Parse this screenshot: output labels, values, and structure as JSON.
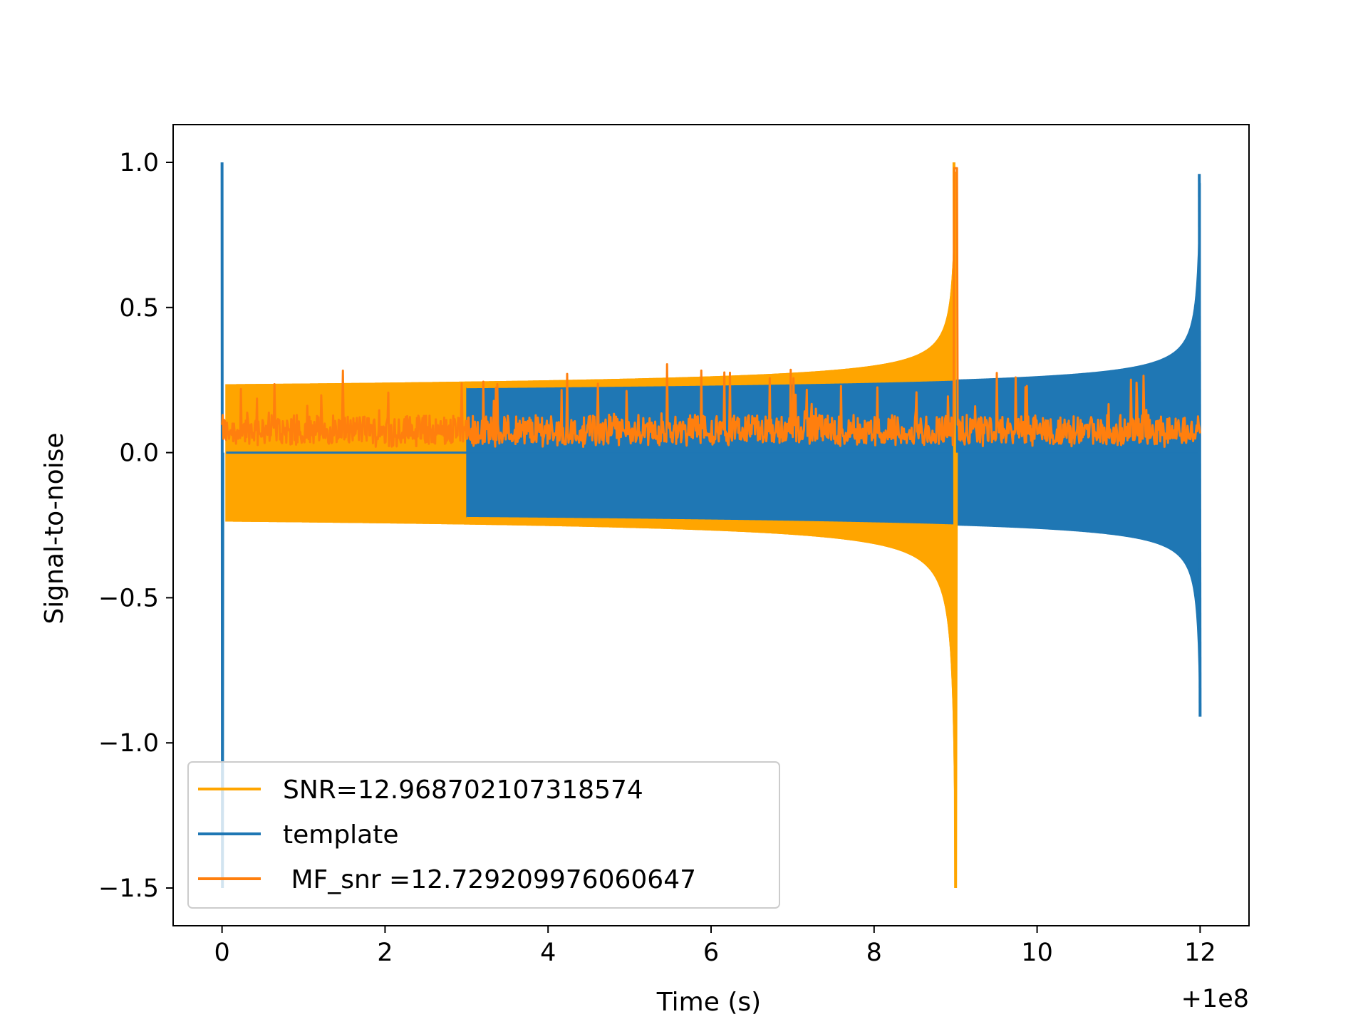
{
  "chart_data": {
    "type": "line",
    "title": "",
    "xlabel": "Time (s)",
    "ylabel": "Signal-to-noise",
    "x_offset_label": "+1e8",
    "xlim": [
      -0.6,
      12.6
    ],
    "ylim": [
      -1.63,
      1.13
    ],
    "xticks": [
      0,
      2,
      4,
      6,
      8,
      10,
      12
    ],
    "xtick_labels": [
      "0",
      "2",
      "4",
      "6",
      "8",
      "10",
      "12"
    ],
    "yticks": [
      1.0,
      0.5,
      0.0,
      -0.5,
      -1.0,
      -1.5
    ],
    "ytick_labels": [
      "1.0",
      "0.5",
      "0.0",
      "−0.5",
      "−1.0",
      "−1.5"
    ],
    "grid": false,
    "legend_position": "lower-left",
    "series": [
      {
        "name": "SNR=12.968702107318574",
        "color": "#ffa500",
        "description_points": {
          "start_time": 0.0,
          "merger_time": 9.0,
          "envelope_start": 0.23,
          "envelope_near_merger": 0.45,
          "peak_max": 1.0,
          "peak_min": -1.5
        }
      },
      {
        "name": "template",
        "color": "#1f77b4",
        "description_points": {
          "start_time": 0.0,
          "merger_time": 12.0,
          "start_spike_max": 1.0,
          "start_spike_min": -1.5,
          "envelope_start": 0.22,
          "envelope_near_merger": 0.4,
          "peak_max": 0.96,
          "peak_min": -0.91
        }
      },
      {
        "name": " MF_snr =12.729209976060647",
        "color": "#ff7f0e",
        "description_points": {
          "start_time": 0.0,
          "end_time": 12.0,
          "baseline": 0.08,
          "peak_time": 9.0,
          "peak_value": 0.98
        }
      }
    ]
  }
}
